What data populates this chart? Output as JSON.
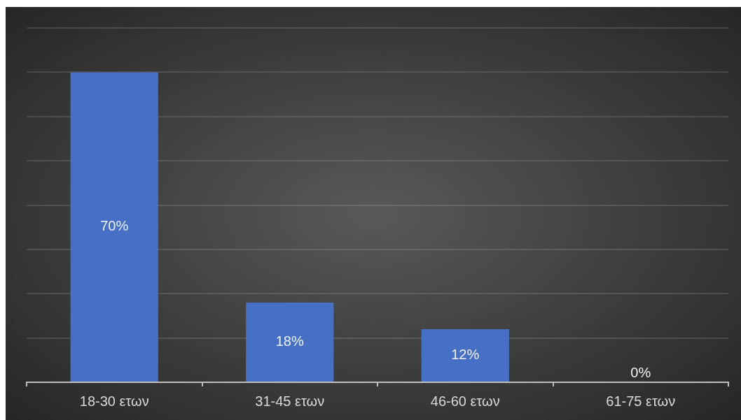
{
  "chart_data": {
    "type": "bar",
    "categories": [
      "18-30 ετων",
      "31-45 ετων",
      "46-60 ετων",
      "61-75 ετων"
    ],
    "values": [
      70,
      18,
      12,
      0
    ],
    "color": "#466fc6",
    "value_labels": [
      "70%",
      "18%",
      "12%",
      "0%"
    ],
    "ylim": [
      0,
      80
    ],
    "yticks": [
      {
        "value": 0,
        "label": null
      },
      {
        "value": 10,
        "label": null
      },
      {
        "value": 20,
        "label": null
      },
      {
        "value": 30,
        "label": null
      },
      {
        "value": 40,
        "label": null
      },
      {
        "value": 50,
        "label": null
      },
      {
        "value": 60,
        "label": null
      },
      {
        "value": 70,
        "label": null
      },
      {
        "value": 80,
        "label": null
      }
    ],
    "grid": "y",
    "tick_labels": "x"
  }
}
